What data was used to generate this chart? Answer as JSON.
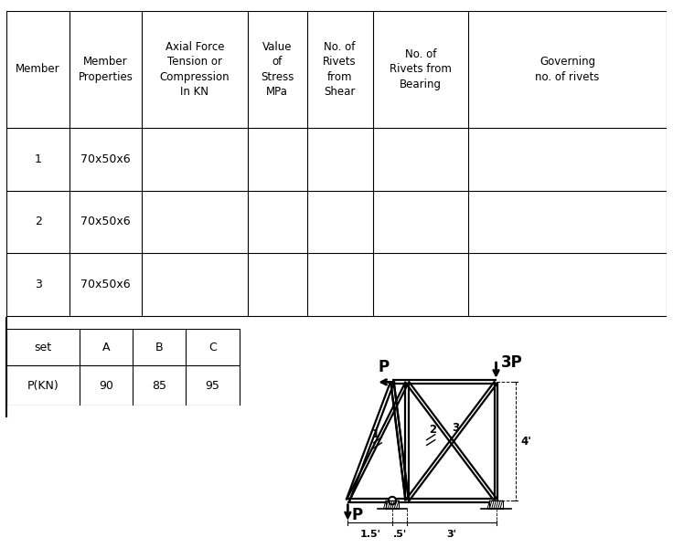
{
  "table_headers": [
    "Member",
    "Member\nProperties",
    "Axial Force\nTension or\nCompression\nIn KN",
    "Value\nof\nStress\nMPa",
    "No. of\nRivets\nfrom\nShear",
    "No. of\nRivets from\nBearing",
    "Governing\nno. of rivets"
  ],
  "table_rows": [
    [
      "1",
      "70x50x6",
      "",
      "",
      "",
      "",
      ""
    ],
    [
      "2",
      "70x50x6",
      "",
      "",
      "",
      "",
      ""
    ],
    [
      "3",
      "70x50x6",
      "",
      "",
      "",
      "",
      ""
    ]
  ],
  "set_table_headers": [
    "set",
    "A",
    "B",
    "C"
  ],
  "set_table_rows": [
    [
      "P(KN)",
      "90",
      "85",
      "95"
    ]
  ],
  "background_color": "#ffffff",
  "line_color": "#000000",
  "text_color": "#000000"
}
